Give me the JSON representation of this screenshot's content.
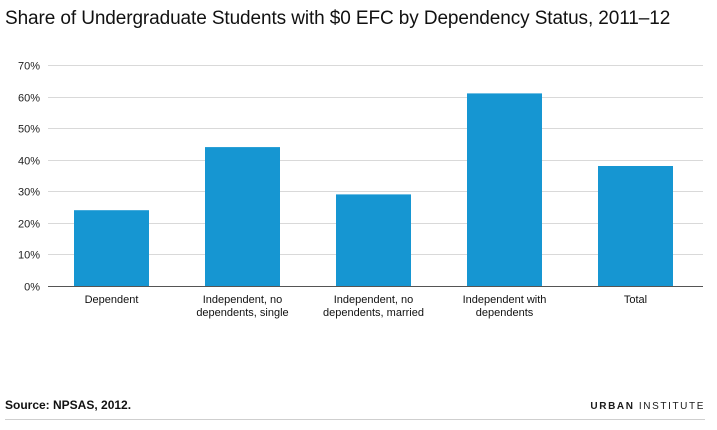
{
  "title": "Share of Undergraduate Students with $0 EFC by Dependency Status, 2011–12",
  "source": "Source: NPSAS, 2012.",
  "brand": {
    "first": "URBAN",
    "second": "INSTITUTE"
  },
  "colors": {
    "bar": "#1696d2",
    "grid": "#d9d9d9",
    "text": "#111111"
  },
  "chart_data": {
    "type": "bar",
    "title": "Share of Undergraduate Students with $0 EFC by Dependency Status, 2011–12",
    "xlabel": "",
    "ylabel": "",
    "categories": [
      [
        "Dependent"
      ],
      [
        "Independent, no",
        "dependents, single"
      ],
      [
        "Independent, no",
        "dependents, married"
      ],
      [
        "Independent with",
        "dependents"
      ],
      [
        "Total"
      ]
    ],
    "values": [
      24,
      44,
      29,
      61,
      38
    ],
    "ylim": [
      0,
      70
    ],
    "yticks": [
      0,
      10,
      20,
      30,
      40,
      50,
      60,
      70
    ],
    "ytick_labels": [
      "0%",
      "10%",
      "20%",
      "30%",
      "40%",
      "50%",
      "60%",
      "70%"
    ],
    "grid": true,
    "legend": "none"
  }
}
